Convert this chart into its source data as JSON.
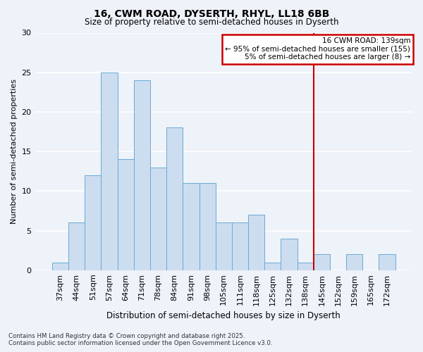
{
  "title_line1": "16, CWM ROAD, DYSERTH, RHYL, LL18 6BB",
  "title_line2": "Size of property relative to semi-detached houses in Dyserth",
  "xlabel": "Distribution of semi-detached houses by size in Dyserth",
  "ylabel": "Number of semi-detached properties",
  "categories": [
    "37sqm",
    "44sqm",
    "51sqm",
    "57sqm",
    "64sqm",
    "71sqm",
    "78sqm",
    "84sqm",
    "91sqm",
    "98sqm",
    "105sqm",
    "111sqm",
    "118sqm",
    "125sqm",
    "132sqm",
    "138sqm",
    "145sqm",
    "152sqm",
    "159sqm",
    "165sqm",
    "172sqm"
  ],
  "values": [
    1,
    6,
    12,
    25,
    14,
    24,
    13,
    18,
    11,
    11,
    6,
    6,
    7,
    1,
    4,
    1,
    2,
    0,
    2,
    0,
    2
  ],
  "bar_color": "#ccddf0",
  "bar_edge_color": "#6aaad4",
  "vline_color": "#cc0000",
  "annotation_title": "16 CWM ROAD: 139sqm",
  "annotation_line2": "← 95% of semi-detached houses are smaller (155)",
  "annotation_line3": "5% of semi-detached houses are larger (8) →",
  "annotation_box_color": "#cc0000",
  "ylim": [
    0,
    30
  ],
  "yticks": [
    0,
    5,
    10,
    15,
    20,
    25,
    30
  ],
  "footer_line1": "Contains HM Land Registry data © Crown copyright and database right 2025.",
  "footer_line2": "Contains public sector information licensed under the Open Government Licence v3.0.",
  "bg_color": "#eef2f9",
  "grid_color": "#ffffff"
}
